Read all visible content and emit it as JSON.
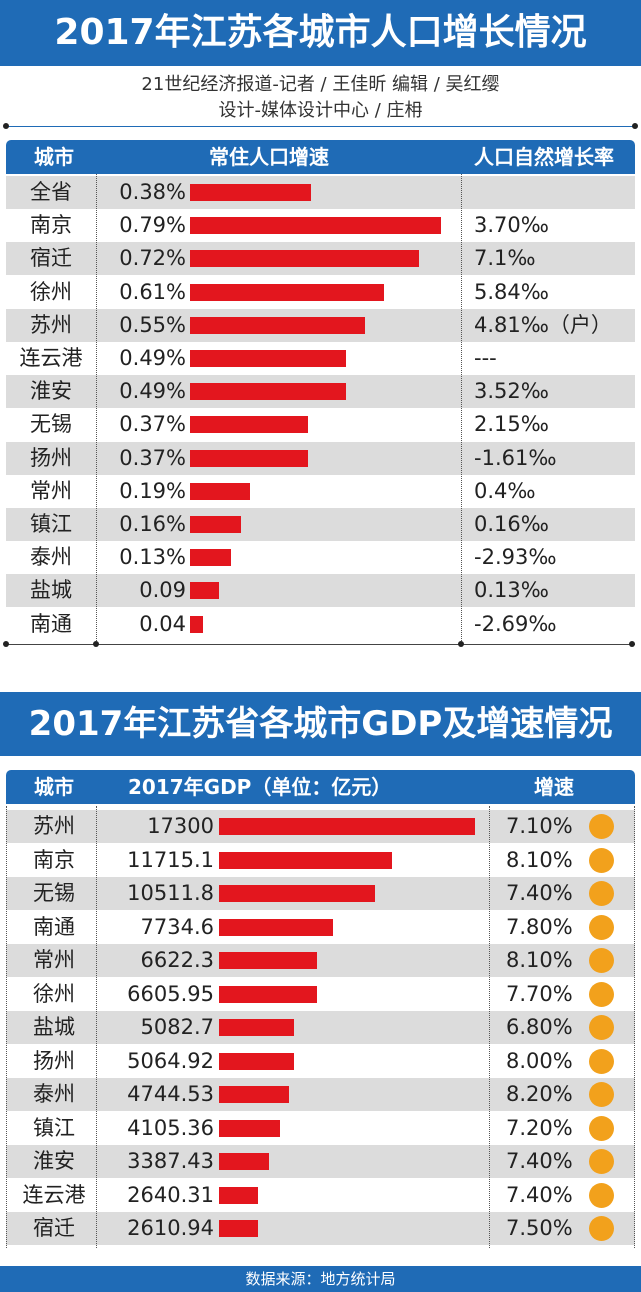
{
  "title1": "2017年江苏各城市人口增长情况",
  "credits": {
    "line1": "21世纪经济报道-记者 / 王佳昕   编辑 / 吴红缨",
    "line2": "设计-媒体设计中心 / 庄枏"
  },
  "table1": {
    "headers": [
      "城市",
      "常住人口增速",
      "人口自然增长率"
    ]
  },
  "title2": "2017年江苏省各城市GDP及增速情况",
  "table2": {
    "headers": [
      "城市",
      "2017年GDP（单位：亿元）",
      "增速"
    ]
  },
  "footer": "数据来源：地方统计局",
  "colors": {
    "accent": "#1f6bb6",
    "bar": "#e3161e",
    "circle": "#f2a11c",
    "stripe": "#dcdcdc"
  },
  "chart_data": [
    {
      "type": "bar",
      "title": "2017年江苏各城市人口增长情况",
      "categories": [
        "全省",
        "南京",
        "宿迁",
        "徐州",
        "苏州",
        "连云港",
        "淮安",
        "无锡",
        "扬州",
        "常州",
        "镇江",
        "泰州",
        "盐城",
        "南通"
      ],
      "values": [
        0.38,
        0.79,
        0.72,
        0.61,
        0.55,
        0.49,
        0.49,
        0.37,
        0.37,
        0.19,
        0.16,
        0.13,
        0.09,
        0.04
      ],
      "value_labels": [
        "0.38%",
        "0.79%",
        "0.72%",
        "0.61%",
        "0.55%",
        "0.49%",
        "0.49%",
        "0.37%",
        "0.37%",
        "0.19%",
        "0.16%",
        "0.13%",
        "0.09",
        "0.04"
      ],
      "natural_growth": [
        "",
        "3.70‰",
        "7.1‰",
        "5.84‰",
        "4.81‰（户）",
        "---",
        "3.52‰",
        "2.15‰",
        "-1.61‰",
        "0.4‰",
        "0.16‰",
        "-2.93‰",
        "0.13‰",
        "-2.69‰"
      ],
      "xlabel": "常住人口增速",
      "ylabel": "城市"
    },
    {
      "type": "bar",
      "title": "2017年江苏省各城市GDP及增速情况",
      "categories": [
        "苏州",
        "南京",
        "无锡",
        "南通",
        "常州",
        "徐州",
        "盐城",
        "扬州",
        "泰州",
        "镇江",
        "淮安",
        "连云港",
        "宿迁"
      ],
      "values": [
        17300,
        11715.1,
        10511.8,
        7734.6,
        6622.3,
        6605.95,
        5082.7,
        5064.92,
        4744.53,
        4105.36,
        3387.43,
        2640.31,
        2610.94
      ],
      "value_labels": [
        "17300",
        "11715.1",
        "10511.8",
        "7734.6",
        "6622.3",
        "6605.95",
        "5082.7",
        "5064.92",
        "4744.53",
        "4105.36",
        "3387.43",
        "2640.31",
        "2610.94"
      ],
      "growth": [
        "7.10%",
        "8.10%",
        "7.40%",
        "7.80%",
        "8.10%",
        "7.70%",
        "6.80%",
        "8.00%",
        "8.20%",
        "7.20%",
        "7.40%",
        "7.40%",
        "7.50%"
      ],
      "xlabel": "2017年GDP（单位：亿元）",
      "ylabel": "城市"
    }
  ]
}
